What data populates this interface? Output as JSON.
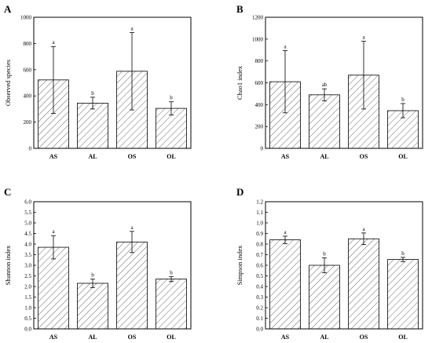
{
  "chart_data": [
    {
      "panel": "A",
      "type": "bar",
      "categories": [
        "AS",
        "AL",
        "OS",
        "OL"
      ],
      "values": [
        522,
        345,
        588,
        305
      ],
      "errors": [
        255,
        45,
        295,
        50
      ],
      "significance": [
        "a",
        "b",
        "a",
        "b"
      ],
      "ylabel": "Observed species",
      "ylim": [
        0,
        1000
      ],
      "yticks": [
        "0",
        "200",
        "400",
        "600",
        "800",
        "1000"
      ]
    },
    {
      "panel": "B",
      "type": "bar",
      "categories": [
        "AS",
        "AL",
        "OS",
        "OL"
      ],
      "values": [
        610,
        490,
        670,
        345
      ],
      "errors": [
        285,
        55,
        310,
        65
      ],
      "significance": [
        "a",
        "ab",
        "a",
        "b"
      ],
      "ylabel": "Chao1 index",
      "ylim": [
        0,
        1200
      ],
      "yticks": [
        "0",
        "200",
        "400",
        "600",
        "800",
        "1000",
        "1200"
      ]
    },
    {
      "panel": "C",
      "type": "bar",
      "categories": [
        "AS",
        "AL",
        "OS",
        "OL"
      ],
      "values": [
        3.85,
        2.15,
        4.1,
        2.35
      ],
      "errors": [
        0.55,
        0.2,
        0.5,
        0.12
      ],
      "significance": [
        "a",
        "b",
        "a",
        "b"
      ],
      "ylabel": "Shannon index",
      "ylim": [
        0,
        6
      ],
      "yticks": [
        "0.0",
        "0.5",
        "1.0",
        "1.5",
        "2.0",
        "2.5",
        "3.0",
        "3.5",
        "4.0",
        "4.5",
        "5.0",
        "5.5",
        "6.0"
      ]
    },
    {
      "panel": "D",
      "type": "bar",
      "categories": [
        "AS",
        "AL",
        "OS",
        "OL"
      ],
      "values": [
        0.84,
        0.6,
        0.85,
        0.655
      ],
      "errors": [
        0.035,
        0.07,
        0.055,
        0.02
      ],
      "significance": [
        "a",
        "b",
        "a",
        "b"
      ],
      "ylabel": "Simpson index",
      "ylim": [
        0,
        1.2
      ],
      "yticks": [
        "0.0",
        "0.1",
        "0.2",
        "0.3",
        "0.4",
        "0.5",
        "0.6",
        "0.7",
        "0.8",
        "0.9",
        "1.0",
        "1.1",
        "1.2"
      ]
    }
  ]
}
